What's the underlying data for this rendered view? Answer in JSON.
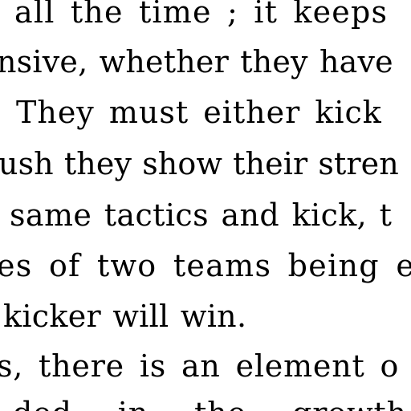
{
  "text_lines": [
    "all the time ; it keeps",
    "nsive, whether they have",
    "They must either kick",
    "ush they show their stren",
    "same tactics and kick, t",
    "es of two teams being eq",
    "kicker will win.",
    "s, there is an element o",
    "ded   in   the   growth"
  ]
}
